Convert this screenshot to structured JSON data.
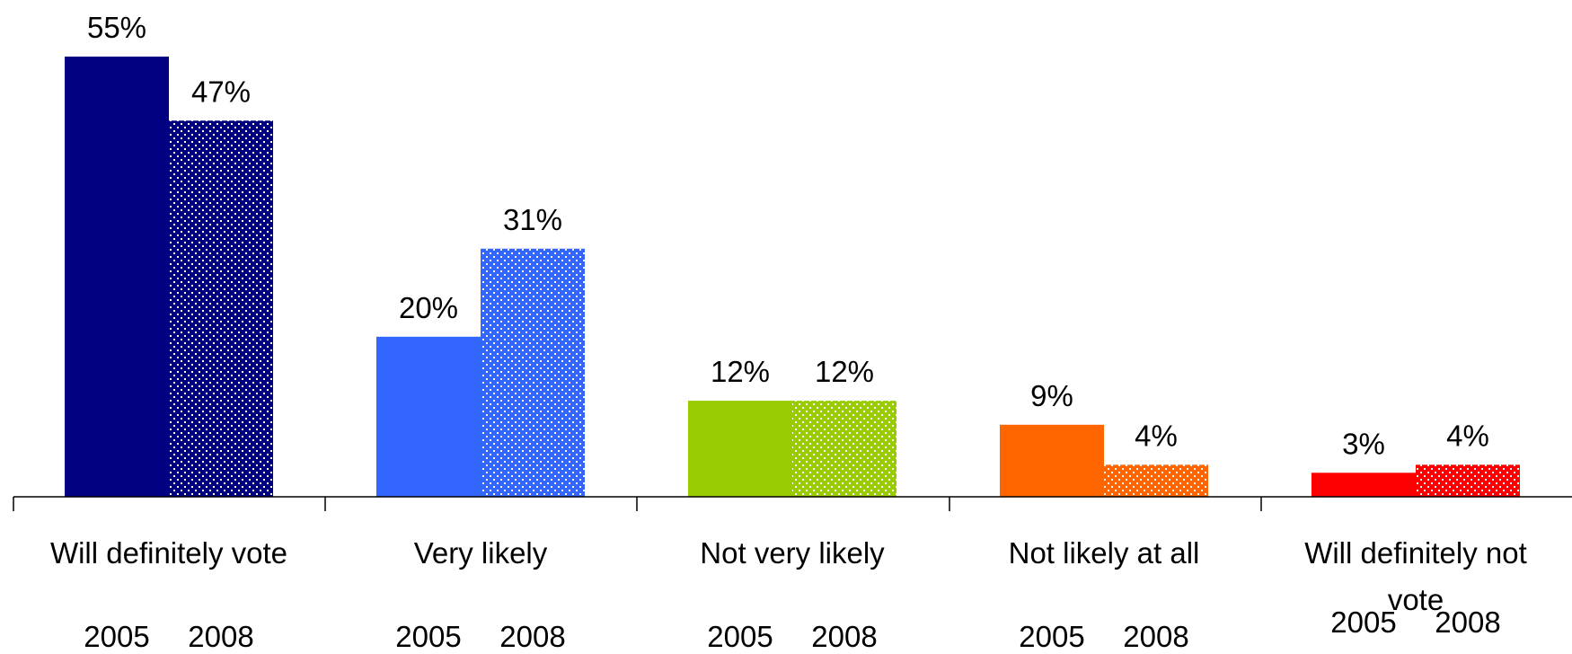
{
  "chart_data": {
    "type": "bar",
    "title": "",
    "xlabel": "",
    "ylabel": "",
    "ylim": [
      0,
      55
    ],
    "grid": false,
    "legend": "none",
    "categories": [
      "Will definitely vote",
      "Very likely",
      "Not very likely",
      "Not likely at all",
      "Will definitely not vote"
    ],
    "category_label_lines": [
      [
        "Will definitely vote"
      ],
      [
        "Very likely"
      ],
      [
        "Not very likely"
      ],
      [
        "Not likely at all"
      ],
      [
        "Will definitely not",
        "vote"
      ]
    ],
    "sub_labels": [
      "2005",
      "2008"
    ],
    "series": [
      {
        "values": [
          55,
          20,
          12,
          9,
          3
        ],
        "value_labels": [
          "55%",
          "20%",
          "12%",
          "9%",
          "3%"
        ]
      },
      {
        "values": [
          47,
          31,
          12,
          4,
          4
        ],
        "value_labels": [
          "47%",
          "31%",
          "12%",
          "4%",
          "4%"
        ]
      }
    ],
    "category_colors": [
      "#000080",
      "#3366FF",
      "#99CC00",
      "#FF6600",
      "#FF0000"
    ],
    "pattern_2008": "dotted"
  }
}
